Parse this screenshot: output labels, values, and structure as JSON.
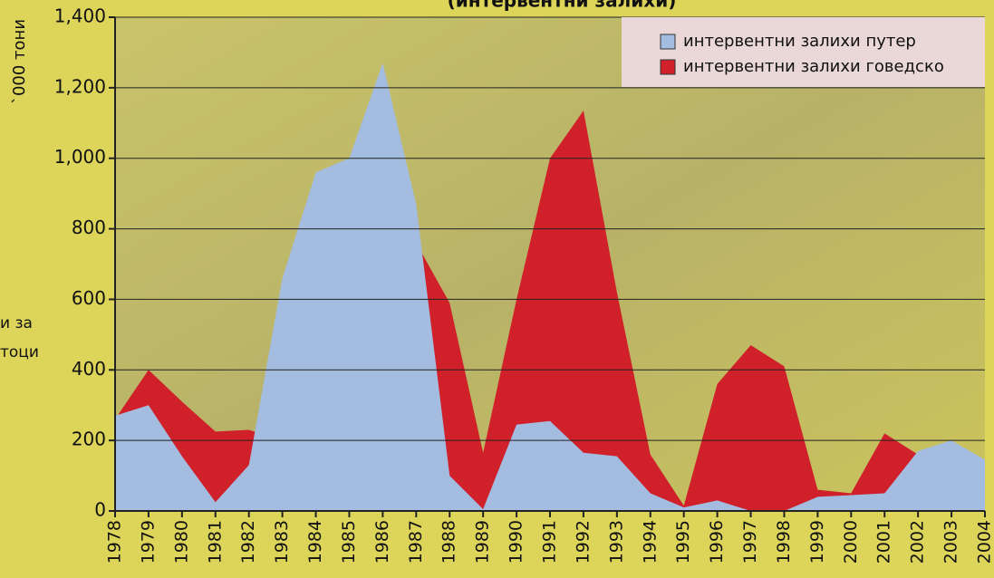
{
  "chart_data": {
    "type": "area",
    "title": "(интервентни залихи)",
    "y_label": "`000 тони",
    "annotations": [
      "и за",
      "тоци"
    ],
    "categories": [
      "1978",
      "1979",
      "1980",
      "1981",
      "1982",
      "1983",
      "1984",
      "1985",
      "1986",
      "1987",
      "1988",
      "1989",
      "1990",
      "1991",
      "1992",
      "1993",
      "1994",
      "1995",
      "1996",
      "1997",
      "1998",
      "1999",
      "2000",
      "2001",
      "2002",
      "2003",
      "2004"
    ],
    "series": [
      {
        "name": "интервентни залихи говедско",
        "color": "#d0202a",
        "values": [
          260,
          400,
          310,
          225,
          230,
          200,
          150,
          100,
          400,
          760,
          590,
          165,
          600,
          1000,
          1135,
          620,
          160,
          15,
          360,
          470,
          410,
          60,
          50,
          220,
          160,
          100,
          100
        ]
      },
      {
        "name": "интервентни залихи путер",
        "color": "#a4bce0",
        "values": [
          270,
          300,
          155,
          25,
          130,
          660,
          960,
          1000,
          1270,
          870,
          100,
          5,
          245,
          255,
          165,
          155,
          50,
          10,
          30,
          0,
          0,
          40,
          45,
          50,
          170,
          200,
          145
        ]
      }
    ],
    "legend_order": [
      1,
      0
    ],
    "ylim": [
      0,
      1400
    ],
    "yticks": [
      0,
      200,
      400,
      600,
      800,
      {
        "value": 1000,
        "label": "1,000"
      },
      {
        "value": 1200,
        "label": "1,200"
      },
      {
        "value": 1400,
        "label": "1,400"
      }
    ],
    "grid": true
  }
}
